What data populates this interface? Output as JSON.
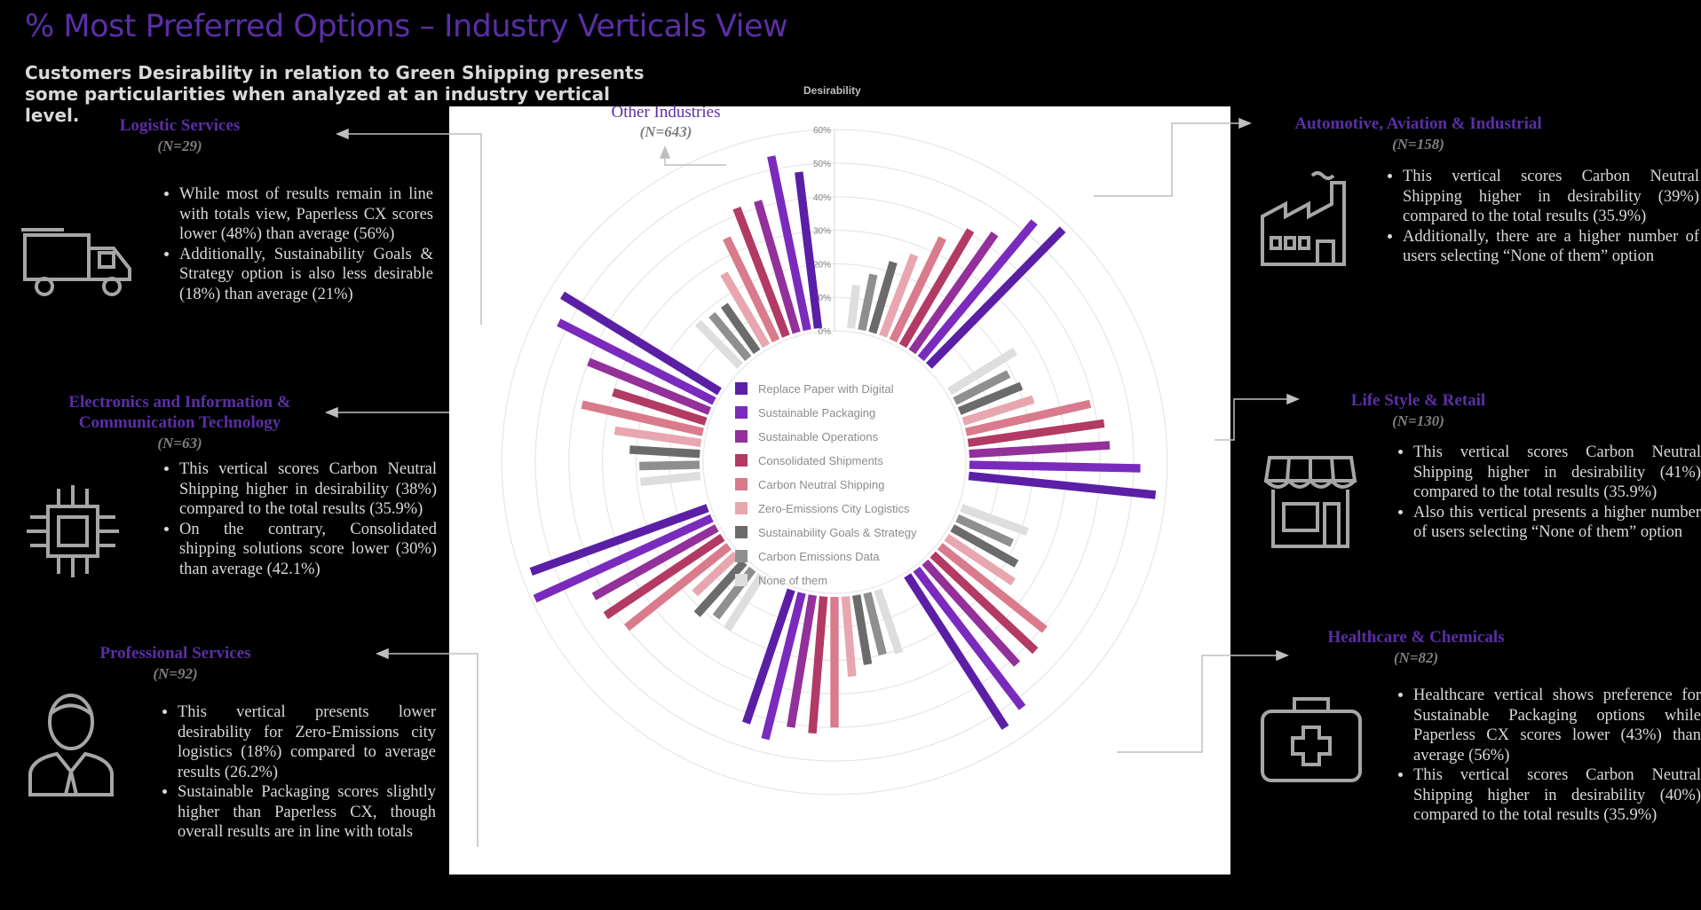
{
  "header": {
    "title": "% Most Preferred Options – Industry Verticals View",
    "subtitle": "Customers Desirability in relation to Green Shipping presents some particularities when analyzed at an industry vertical level."
  },
  "colors": {
    "accent": "#5b2ea6",
    "series": [
      "#5b1fa6",
      "#7a2bbd",
      "#93309a",
      "#b23a64",
      "#d97b8c",
      "#e8a7b0",
      "#6b6b6b",
      "#8f8f8f",
      "#dedede",
      "#efefef"
    ]
  },
  "panels": [
    {
      "id": "logistic",
      "title": "Logistic Services",
      "n": "(N=29)",
      "icon": "truck-icon",
      "bullets": [
        "While most of results remain in line with totals view, Paperless CX scores lower (48%) than average (56%)",
        "Additionally, Sustainability Goals & Strategy option is also less desirable (18%) than average (21%)"
      ]
    },
    {
      "id": "electronics",
      "title": "Electronics and Information & Communication Technology",
      "n": "(N=63)",
      "icon": "chip-icon",
      "bullets": [
        "This vertical scores Carbon Neutral Shipping higher in desirability (38%) compared to the total results (35.9%)",
        "On the contrary, Consolidated shipping solutions score lower (30%) than average (42.1%)"
      ]
    },
    {
      "id": "professional",
      "title": "Professional Services",
      "n": "(N=92)",
      "icon": "person-icon",
      "bullets": [
        "This vertical presents lower desirability for Zero-Emissions city logistics (18%) compared to average results (26.2%)",
        "Sustainable Packaging scores slightly higher than Paperless CX, though overall results are in line with totals"
      ]
    },
    {
      "id": "automotive",
      "title": "Automotive, Aviation & Industrial",
      "n": "(N=158)",
      "icon": "factory-icon",
      "bullets": [
        "This vertical scores Carbon Neutral Shipping higher in desirability (39%) compared to the total results (35.9%)",
        "Additionally, there are a higher number of users selecting “None of them” option"
      ]
    },
    {
      "id": "lifestyle",
      "title": "Life Style & Retail",
      "n": "(N=130)",
      "icon": "storefront-icon",
      "bullets": [
        "This vertical scores Carbon Neutral Shipping higher in desirability (41%) compared to the total results (35.9%)",
        "Also this vertical presents a higher number of users selecting “None of them” option"
      ]
    },
    {
      "id": "healthcare",
      "title": "Healthcare & Chemicals",
      "n": "(N=82)",
      "icon": "medical-kit-icon",
      "bullets": [
        "Healthcare vertical shows preference for Sustainable Packaging options while Paperless CX scores lower (43%) than average (56%)",
        "This vertical scores Carbon Neutral Shipping higher in desirability (40%) compared to the total results (35.9%)"
      ]
    }
  ],
  "chart_data": {
    "type": "bar",
    "subtype": "radial-grouped-bar",
    "axis_title": "Desirability",
    "radial_ticks": [
      "0%",
      "10%",
      "20%",
      "30%",
      "40%",
      "50%",
      "60%"
    ],
    "rlim": [
      0,
      60
    ],
    "legend_position": "center",
    "center_label": {
      "title": "Other Industries",
      "n": "(N=643)"
    },
    "categories": [
      "Replace Paper with Digital",
      "Sustainable Packaging",
      "Sustainable Operations",
      "Consolidated Shipments",
      "Carbon Neutral Shipping",
      "Zero-Emissions City Logistics",
      "Sustainability Goals & Strategy",
      "Carbon Emissions Data",
      "None of them"
    ],
    "groups": [
      "Other Industries",
      "Automotive, Aviation & Industrial",
      "Life Style & Retail",
      "Healthcare & Chemicals",
      "Professional Services",
      "Electronics and Information & Communication Technology",
      "Logistic Services"
    ],
    "series": [
      {
        "name": "Other Industries",
        "values": [
          58,
          54,
          44,
          41,
          35,
          27,
          23,
          18,
          14
        ]
      },
      {
        "name": "Automotive, Aviation & Industrial",
        "values": [
          57,
          52,
          43,
          42,
          39,
          23,
          21,
          19,
          24
        ]
      },
      {
        "name": "Life Style & Retail",
        "values": [
          55,
          53,
          42,
          43,
          41,
          25,
          23,
          19,
          22
        ]
      },
      {
        "name": "Healthcare & Chemicals",
        "values": [
          43,
          46,
          41,
          42,
          40,
          25,
          22,
          20,
          21
        ]
      },
      {
        "name": "Professional Services",
        "values": [
          57,
          59,
          43,
          43,
          40,
          18,
          22,
          19,
          20
        ]
      },
      {
        "name": "Electronics and Information & Communication Technology",
        "values": [
          56,
          53,
          40,
          30,
          38,
          27,
          22,
          19,
          19
        ]
      },
      {
        "name": "Logistic Services",
        "values": [
          48,
          54,
          42,
          42,
          35,
          26,
          18,
          18,
          19
        ]
      }
    ]
  }
}
